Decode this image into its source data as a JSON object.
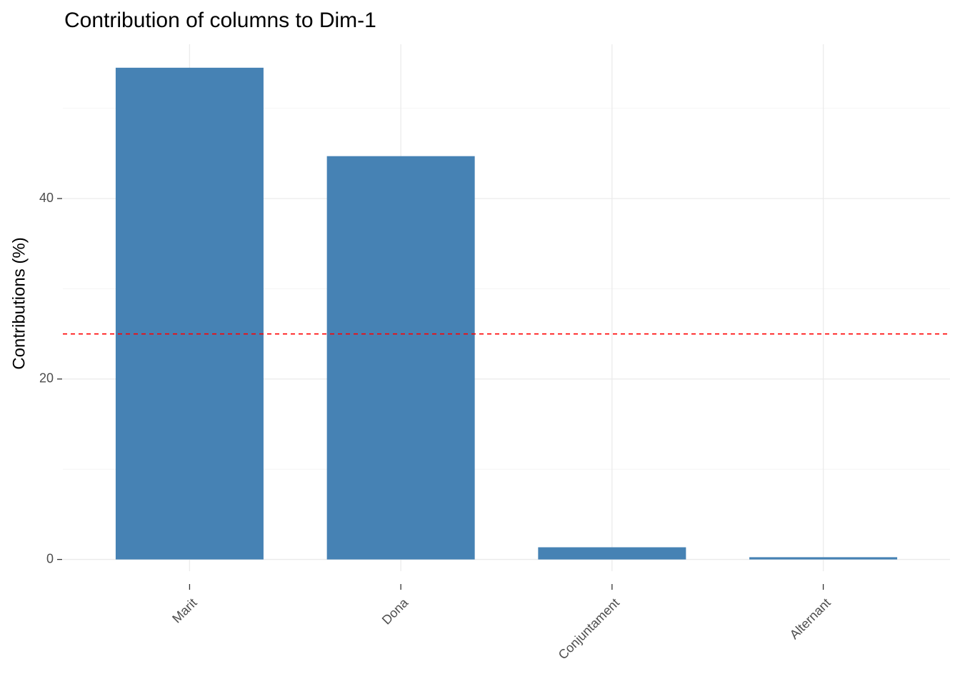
{
  "chart_data": {
    "type": "bar",
    "title": "Contribution of columns to Dim-1",
    "y_label": "Contributions (%)",
    "categories": [
      "Marit",
      "Dona",
      "Conjuntament",
      "Alternant"
    ],
    "values": [
      54.5,
      44.7,
      1.35,
      0.25
    ],
    "color": "#4682b4",
    "ylim": [
      -1.3,
      57.1
    ],
    "yticks": [
      0,
      20,
      40
    ],
    "minor_yticks": [
      10,
      30,
      50
    ],
    "grid": true,
    "reference_line": {
      "value": 25,
      "color": "#ff0000",
      "dashed": true
    }
  }
}
